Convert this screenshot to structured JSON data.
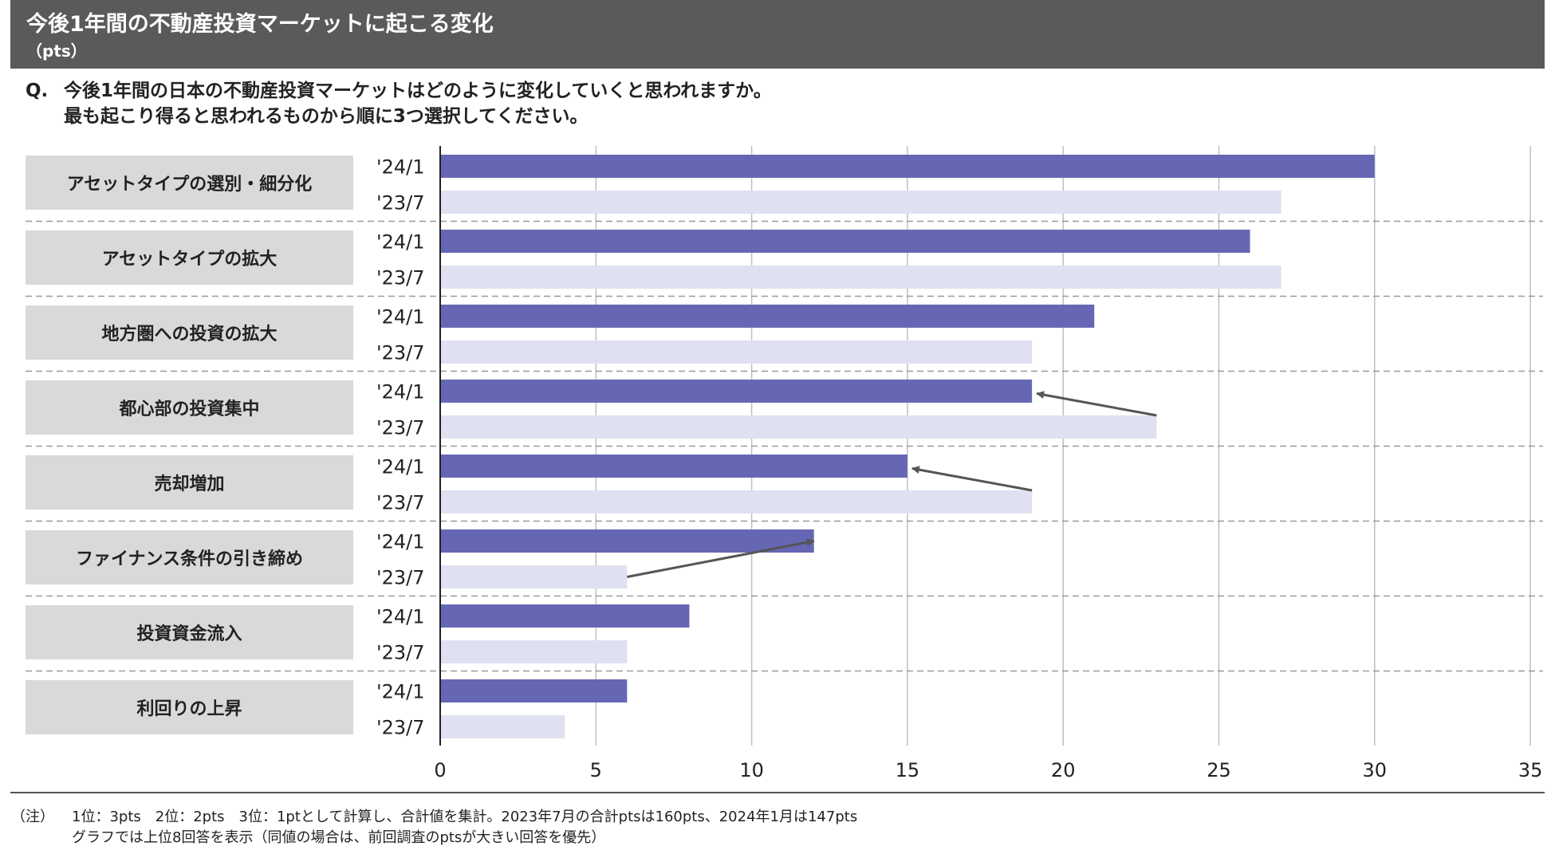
{
  "header": {
    "title": "今後1年間の不動産投資マーケットに起こる変化",
    "unit": "（pts）"
  },
  "question": {
    "prefix": "Q.",
    "line1": "今後1年間の日本の不動産投資マーケットはどのように変化していくと思われますか。",
    "line2": "最も起こり得ると思われるものから順に3つ選択してください。"
  },
  "chart_data": {
    "type": "bar",
    "orientation": "horizontal",
    "categories": [
      "アセットタイプの選別・細分化",
      "アセットタイプの拡大",
      "地方圏への投資の拡大",
      "都心部の投資集中",
      "売却増加",
      "ファイナンス条件の引き締め",
      "投資資金流入",
      "利回りの上昇"
    ],
    "series": [
      {
        "name": "'24/1",
        "color": "#6667b4",
        "values": [
          30,
          26,
          21,
          19,
          15,
          12,
          8,
          6
        ]
      },
      {
        "name": "'23/7",
        "color": "#dfe0f0",
        "values": [
          27,
          27,
          19,
          23,
          19,
          6,
          6,
          4
        ]
      }
    ],
    "xlim": [
      0,
      35
    ],
    "xticks": [
      "0",
      "5",
      "10",
      "15",
      "20",
      "25",
      "30",
      "35"
    ],
    "xtick_values": [
      0,
      5,
      10,
      15,
      20,
      25,
      30,
      35
    ],
    "grid": true,
    "annotations": [
      {
        "type": "arrow",
        "category": "都心部の投資集中",
        "from": 23,
        "to": 19
      },
      {
        "type": "arrow",
        "category": "売却増加",
        "from": 19,
        "to": 15
      },
      {
        "type": "arrow",
        "category": "ファイナンス条件の引き締め",
        "from": 6,
        "to": 12
      }
    ]
  },
  "notes": {
    "prefix": "（注）",
    "line1": "1位：3pts　2位：2pts　3位：1ptとして計算し、合計値を集計。2023年7月の合計ptsは160pts、2024年1月は147pts",
    "line2": "グラフでは上位8回答を表示（同値の場合は、前回調査のptsが大きい回答を優先）"
  }
}
